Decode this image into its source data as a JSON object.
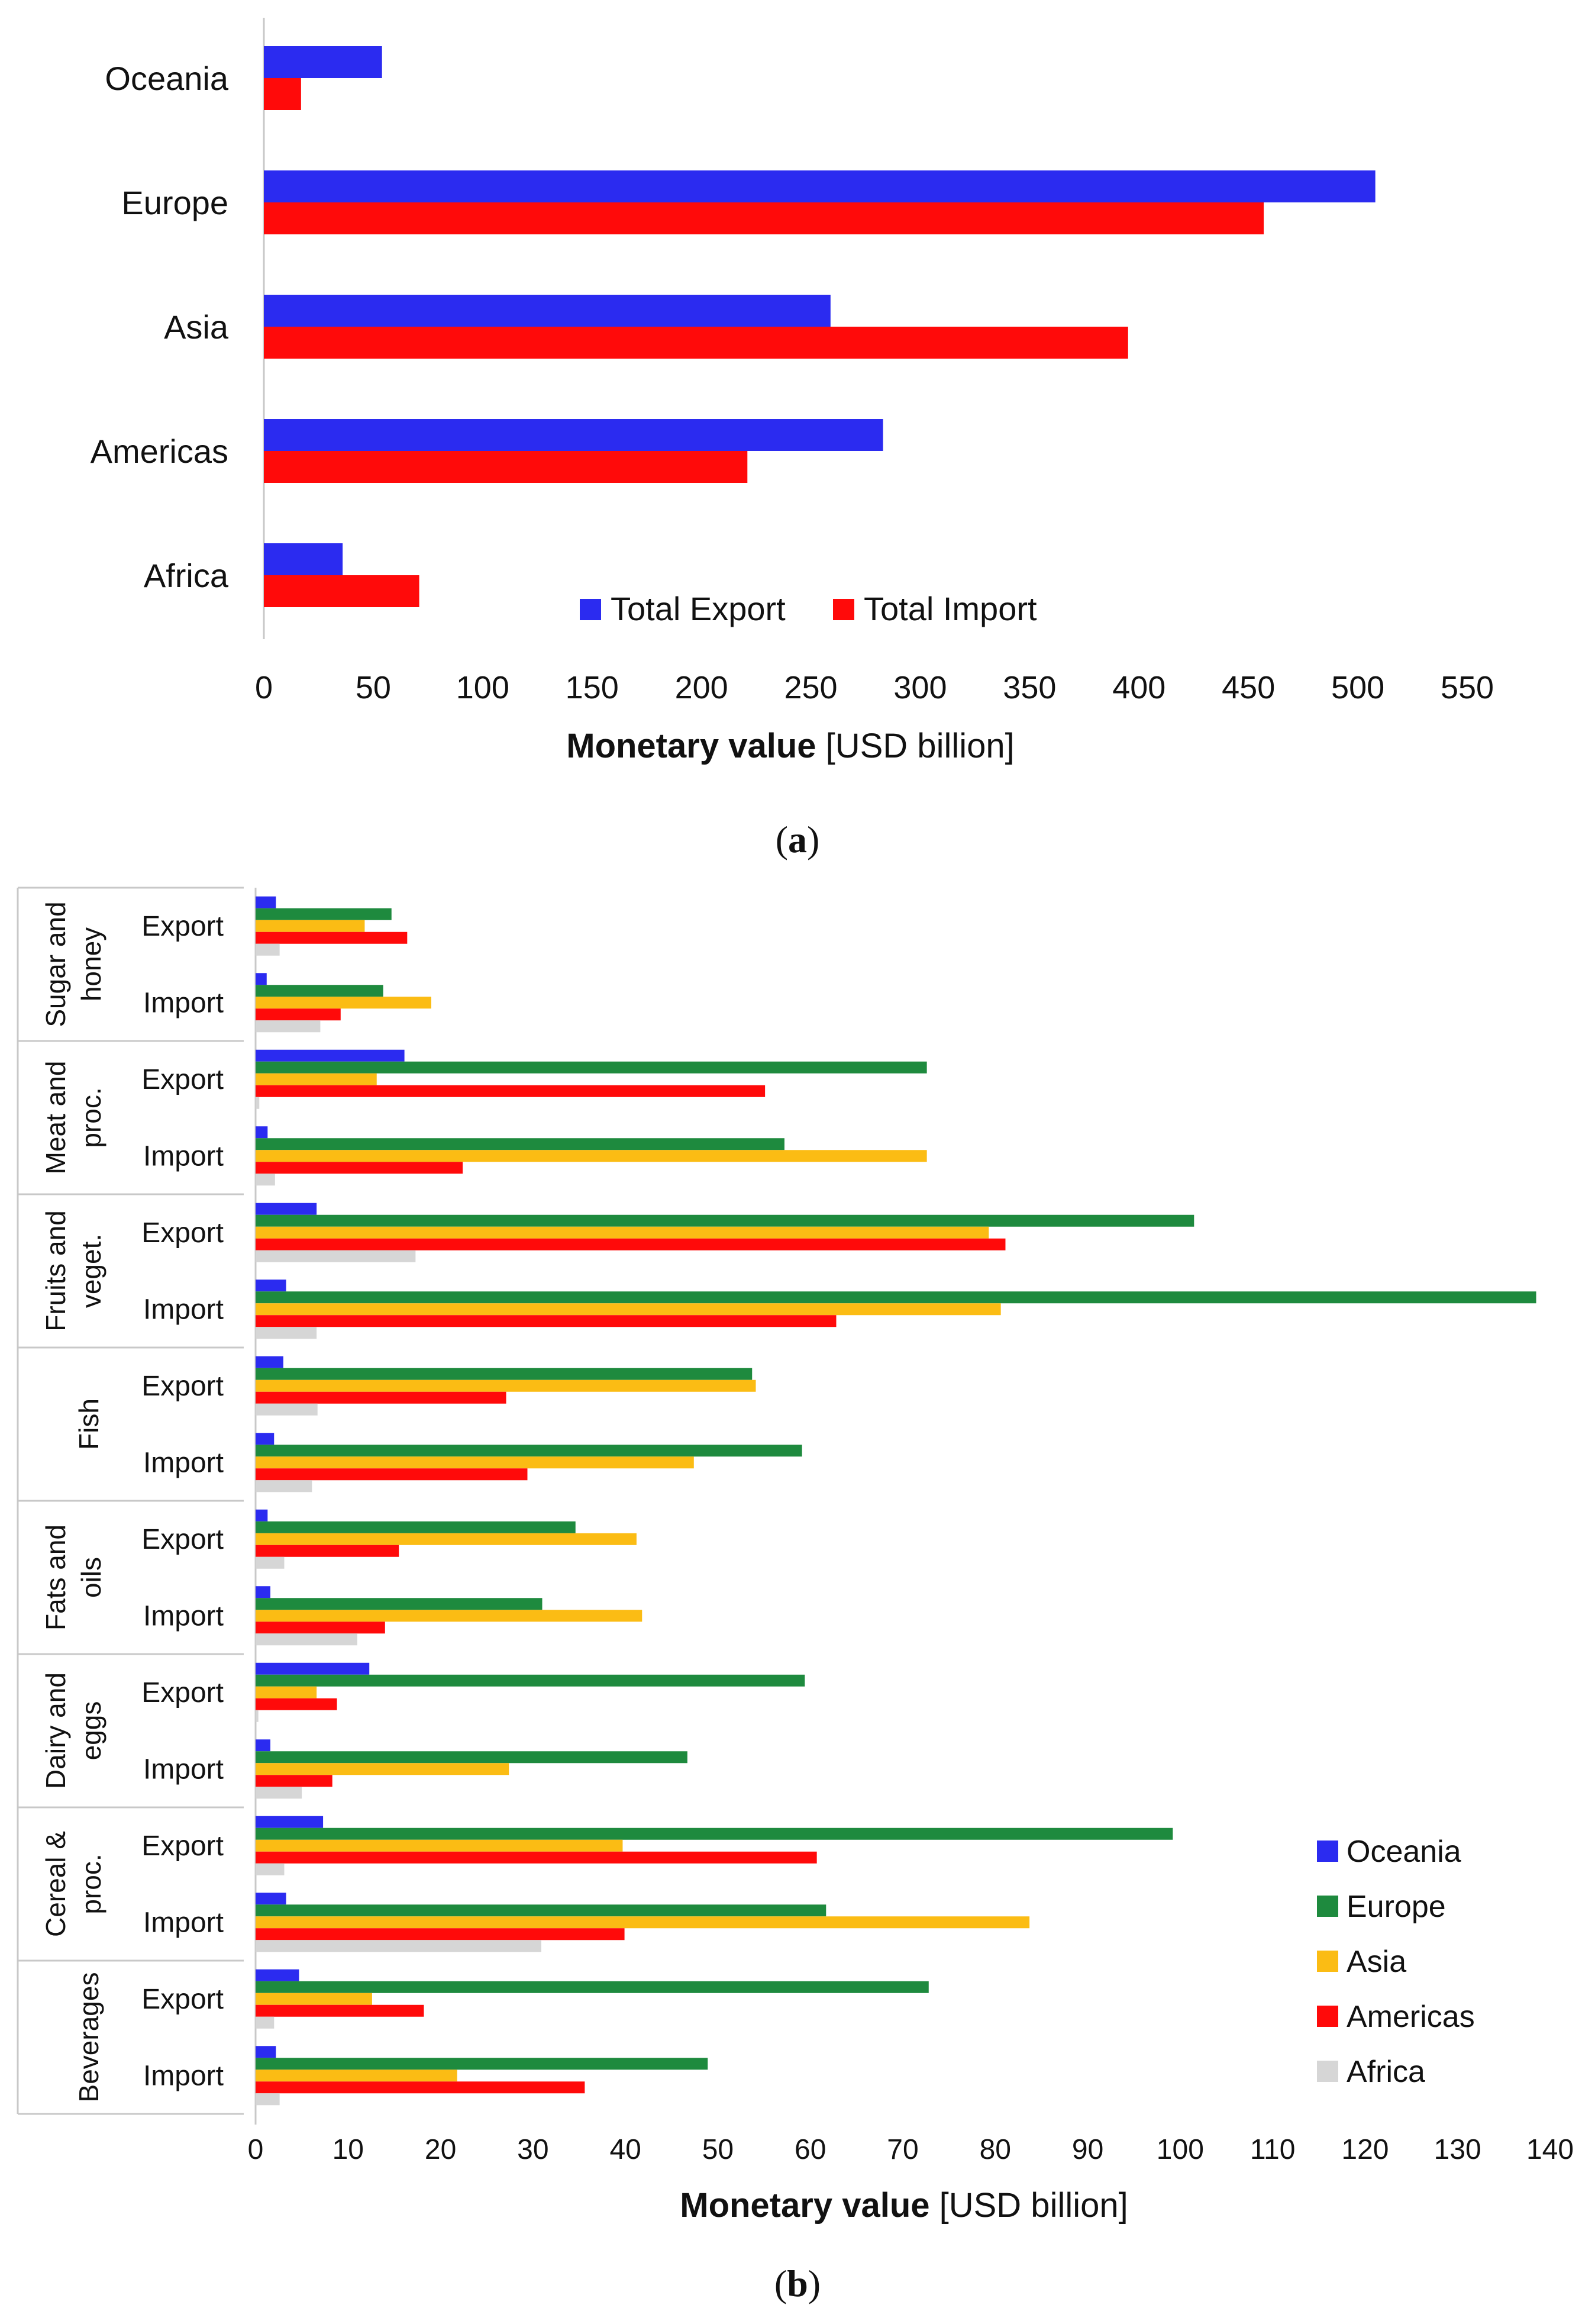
{
  "chart_data": [
    {
      "panel": "a",
      "type": "bar",
      "orientation": "horizontal",
      "title": "",
      "categories": [
        "Oceania",
        "Europe",
        "Asia",
        "Americas",
        "Africa"
      ],
      "series": [
        {
          "name": "Total Export",
          "color": "#2b2bf0",
          "values": [
            54,
            508,
            259,
            283,
            36
          ]
        },
        {
          "name": "Total Import",
          "color": "#ff0a0a",
          "values": [
            17,
            457,
            395,
            221,
            71
          ]
        }
      ],
      "xlim": [
        0,
        550
      ],
      "xticks": [
        0,
        50,
        100,
        150,
        200,
        250,
        300,
        350,
        400,
        450,
        500,
        550
      ],
      "xlabel_bold": "Monetary value",
      "xlabel_rest": "[USD billion]",
      "legend_position": "bottom-center",
      "grid": false,
      "caption": {
        "open": "(",
        "letter": "a",
        "close": ")"
      }
    },
    {
      "panel": "b",
      "type": "bar",
      "orientation": "horizontal",
      "title": "",
      "groups": [
        {
          "name_lines": [
            "Sugar and",
            "honey"
          ],
          "rows": [
            "Export",
            "Import"
          ]
        },
        {
          "name_lines": [
            "Meat and",
            "proc."
          ],
          "rows": [
            "Export",
            "Import"
          ]
        },
        {
          "name_lines": [
            "Fruits and",
            "veget."
          ],
          "rows": [
            "Export",
            "Import"
          ]
        },
        {
          "name_lines": [
            "Fish"
          ],
          "rows": [
            "Export",
            "Import"
          ]
        },
        {
          "name_lines": [
            "Fats and",
            "oils"
          ],
          "rows": [
            "Export",
            "Import"
          ]
        },
        {
          "name_lines": [
            "Dairy and",
            "eggs"
          ],
          "rows": [
            "Export",
            "Import"
          ]
        },
        {
          "name_lines": [
            "Cereal &",
            "proc."
          ],
          "rows": [
            "Export",
            "Import"
          ]
        },
        {
          "name_lines": [
            "Beverages"
          ],
          "rows": [
            "Export",
            "Import"
          ]
        }
      ],
      "series": [
        {
          "name": "Oceania",
          "color": "#2b2bf0",
          "values": [
            2.2,
            1.2,
            16.1,
            1.3,
            6.6,
            3.3,
            3.0,
            2.0,
            1.3,
            1.6,
            12.3,
            1.6,
            7.3,
            3.3,
            4.7,
            2.2
          ]
        },
        {
          "name": "Europe",
          "color": "#1e8a3e",
          "values": [
            14.7,
            13.8,
            72.6,
            57.2,
            101.5,
            138.5,
            53.7,
            59.1,
            34.6,
            31.0,
            59.4,
            46.7,
            99.2,
            61.7,
            72.8,
            48.9
          ]
        },
        {
          "name": "Asia",
          "color": "#fbbc14",
          "values": [
            11.8,
            19.0,
            13.1,
            72.6,
            79.3,
            80.6,
            54.1,
            47.4,
            41.2,
            41.8,
            6.6,
            27.4,
            39.7,
            83.7,
            12.6,
            21.8
          ]
        },
        {
          "name": "Americas",
          "color": "#ff0a0a",
          "values": [
            16.4,
            9.2,
            55.1,
            22.4,
            81.1,
            62.8,
            27.1,
            29.4,
            15.5,
            14.0,
            8.8,
            8.3,
            60.7,
            39.9,
            18.2,
            35.6
          ]
        },
        {
          "name": "Africa",
          "color": "#d6d6d6",
          "values": [
            2.6,
            7.0,
            0.4,
            2.1,
            17.3,
            6.6,
            6.7,
            6.1,
            3.1,
            11.0,
            0.3,
            5.0,
            3.1,
            30.9,
            2.0,
            2.6
          ]
        }
      ],
      "xlim": [
        0,
        140
      ],
      "xticks": [
        0,
        10,
        20,
        30,
        40,
        50,
        60,
        70,
        80,
        90,
        100,
        110,
        120,
        130,
        140
      ],
      "xlabel_bold": "Monetary value",
      "xlabel_rest": "[USD billion]",
      "legend_position": "right",
      "grid": false,
      "caption": {
        "open": "(",
        "letter": "b",
        "close": ")"
      }
    }
  ]
}
